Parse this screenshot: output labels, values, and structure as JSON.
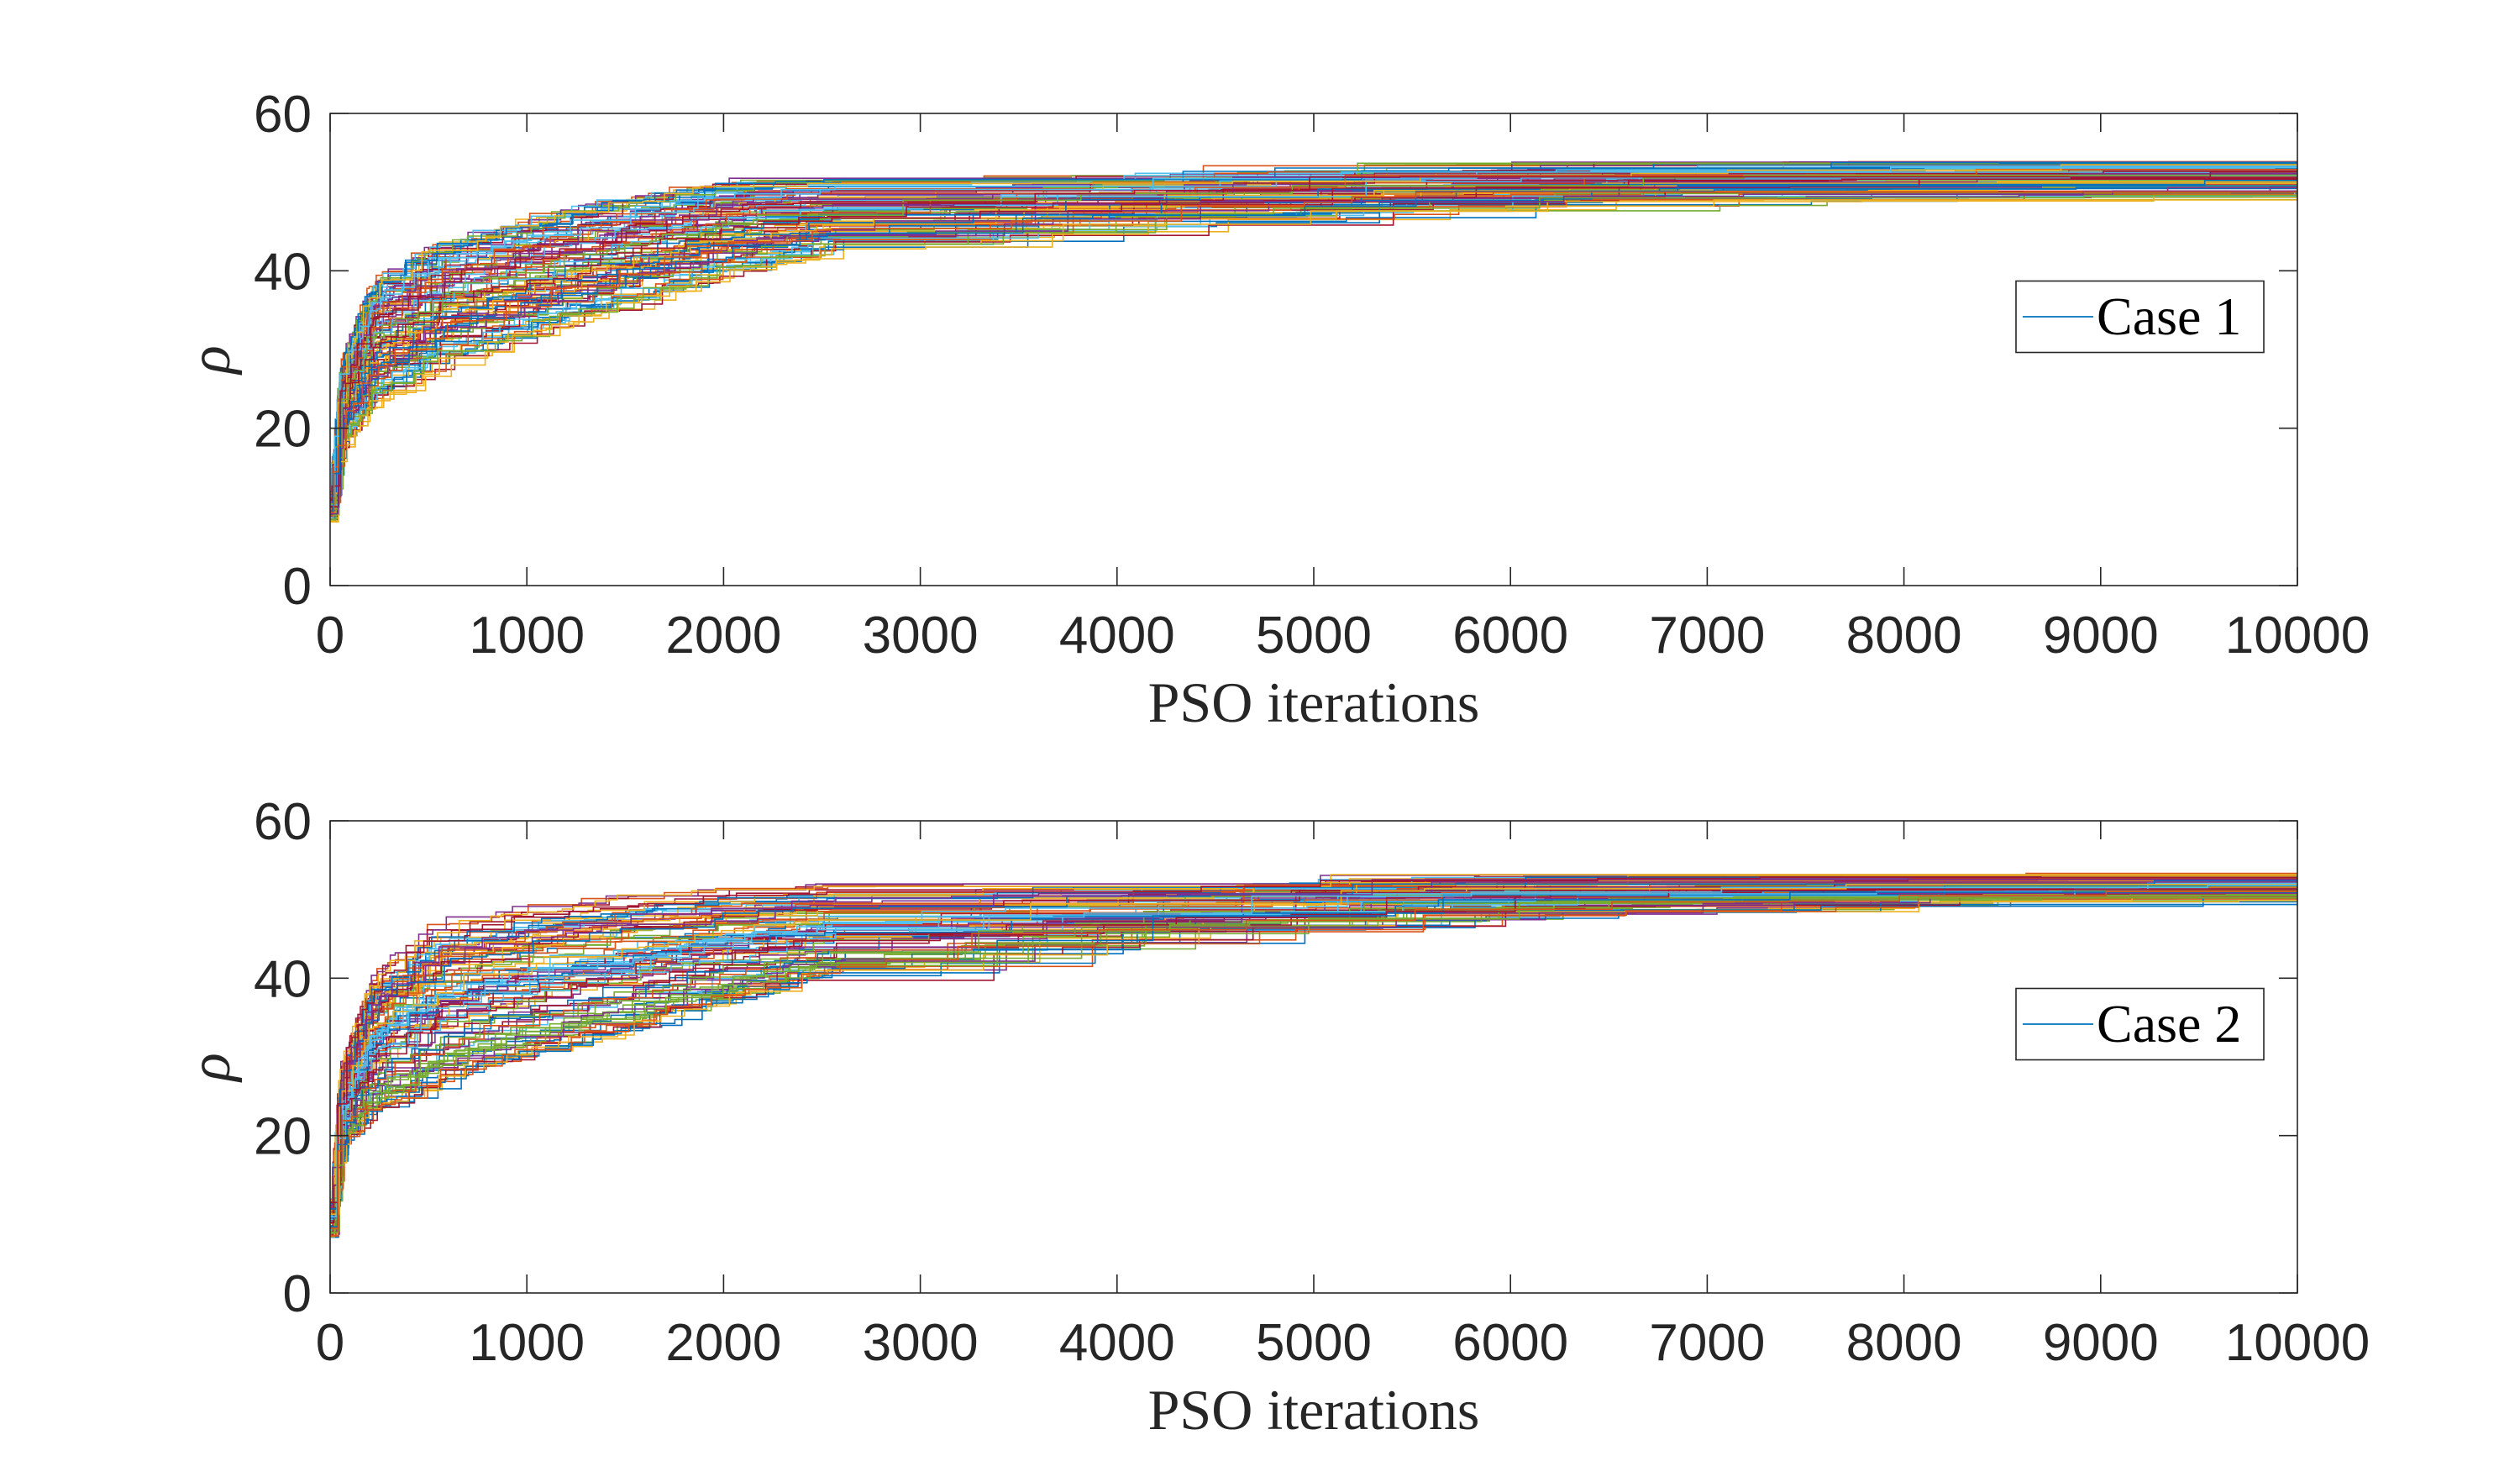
{
  "chart_data": [
    {
      "type": "line",
      "series_style": "stairs",
      "xlabel": "PSO iterations",
      "ylabel": "ρ",
      "xlim": [
        0,
        10000
      ],
      "ylim": [
        0,
        60
      ],
      "xticks": [
        "0",
        "1000",
        "2000",
        "3000",
        "4000",
        "5000",
        "6000",
        "7000",
        "8000",
        "9000",
        "10000"
      ],
      "yticks": [
        "0",
        "20",
        "40",
        "60"
      ],
      "grid": false,
      "legend": {
        "position": "right",
        "entries": [
          "Case 1"
        ]
      },
      "num_runs": 100,
      "envelope": {
        "x": [
          0,
          50,
          200,
          500,
          1000,
          1500,
          2000,
          2500,
          3000,
          4000,
          5000,
          6000,
          7000,
          10000
        ],
        "lower": [
          8,
          17,
          22,
          27,
          31,
          35,
          39,
          42,
          43.5,
          45.5,
          47,
          48,
          48.5,
          48.5
        ],
        "upper": [
          12,
          28,
          38,
          43,
          46.5,
          49,
          51,
          51,
          51.5,
          52,
          53,
          53,
          53,
          53
        ]
      }
    },
    {
      "type": "line",
      "series_style": "stairs",
      "xlabel": "PSO iterations",
      "ylabel": "ρ",
      "xlim": [
        0,
        10000
      ],
      "ylim": [
        0,
        60
      ],
      "xticks": [
        "0",
        "1000",
        "2000",
        "3000",
        "4000",
        "5000",
        "6000",
        "7000",
        "8000",
        "9000",
        "10000"
      ],
      "yticks": [
        "0",
        "20",
        "40",
        "60"
      ],
      "grid": false,
      "legend": {
        "position": "right",
        "entries": [
          "Case 2"
        ]
      },
      "num_runs": 100,
      "envelope": {
        "x": [
          0,
          50,
          200,
          500,
          1000,
          1500,
          2000,
          2500,
          3000,
          4000,
          5000,
          6000,
          7000,
          10000
        ],
        "lower": [
          7,
          18,
          22,
          26,
          30,
          33,
          37,
          40,
          42.5,
          45,
          47,
          48.5,
          49,
          49.5
        ],
        "upper": [
          12,
          29,
          40,
          47,
          49,
          50.5,
          51,
          51.5,
          51.5,
          51.5,
          52.5,
          52.5,
          52.5,
          52.5
        ]
      }
    }
  ],
  "colors": {
    "axes": "#262626",
    "palette": [
      "#0072BD",
      "#D95319",
      "#EDB120",
      "#7E2F8E",
      "#77AC30",
      "#4DBEEE",
      "#A2142F"
    ]
  }
}
